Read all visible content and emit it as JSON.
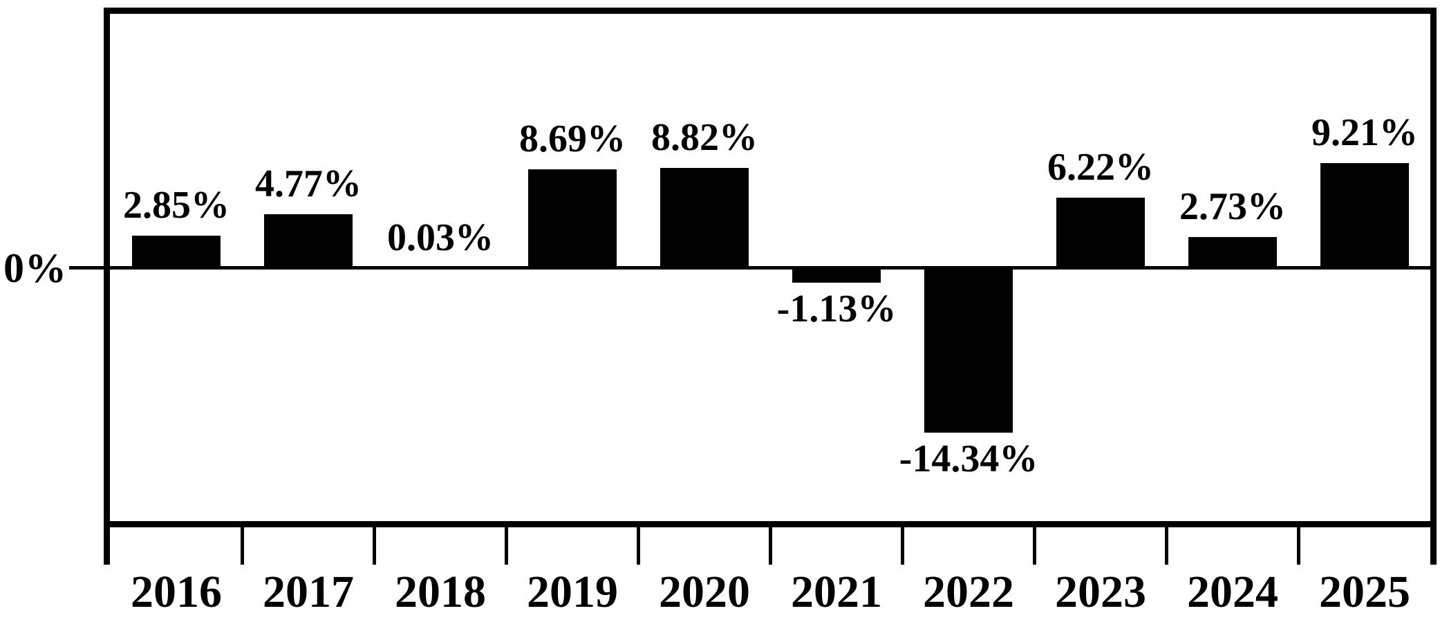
{
  "chart_data": {
    "type": "bar",
    "title": "",
    "xlabel": "",
    "ylabel": "",
    "categories": [
      "2016",
      "2017",
      "2018",
      "2019",
      "2020",
      "2021",
      "2022",
      "2023",
      "2024",
      "2025"
    ],
    "values": [
      2.85,
      4.77,
      0.03,
      8.69,
      8.82,
      -1.13,
      -14.34,
      6.22,
      2.73,
      9.21
    ],
    "value_labels": [
      "2.85%",
      "4.77%",
      "0.03%",
      "8.69%",
      "8.82%",
      "-1.13%",
      "-14.34%",
      "6.22%",
      "2.73%",
      "9.21%"
    ],
    "y_axis": {
      "zero_label": "0%"
    },
    "ylim": [
      -22.5,
      22.5
    ],
    "grid": false,
    "legend": false,
    "bar_color": "#000000",
    "background_color": "#ffffff",
    "label_position": "outside-end"
  }
}
